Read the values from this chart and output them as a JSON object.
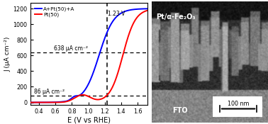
{
  "title": "",
  "xlabel": "E (V vs RHE)",
  "ylabel": "J (μA cm⁻²)",
  "xlim": [
    0.3,
    1.72
  ],
  "ylim": [
    -30,
    1270
  ],
  "xticks": [
    0.4,
    0.6,
    0.8,
    1.0,
    1.2,
    1.4,
    1.6
  ],
  "yticks": [
    0,
    200,
    400,
    600,
    800,
    1000,
    1200
  ],
  "vline_x": 1.23,
  "hline_638": 638,
  "hline_86": 86,
  "annotation_123": "1.23 V",
  "annotation_638": "638 μA cm⁻²",
  "annotation_86": "86 μA cm⁻²",
  "legend_blue": "A+Pt(50)+A",
  "legend_red": "Pt(50)",
  "blue_color": "#0000FF",
  "red_color": "#FF0000",
  "bg_color": "#FFFFFF",
  "sem_label_top": "Pt/α-Fe₂O₃",
  "sem_label_bottom": "FTO",
  "scalebar_text": "100 nm"
}
